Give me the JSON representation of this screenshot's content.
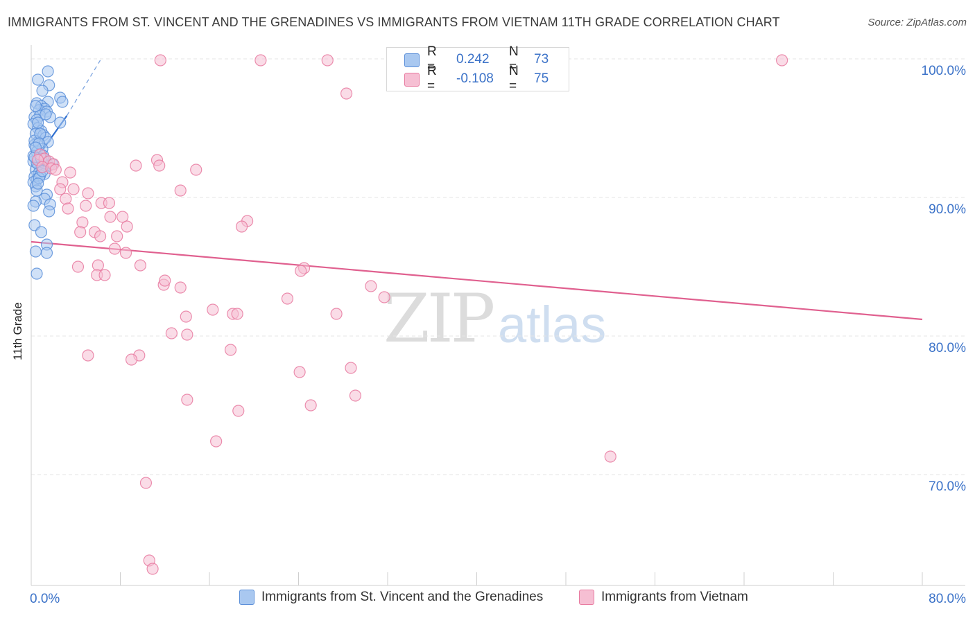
{
  "title": "IMMIGRANTS FROM ST. VINCENT AND THE GRENADINES VS IMMIGRANTS FROM VIETNAM 11TH GRADE CORRELATION CHART",
  "source": "Source: ZipAtlas.com",
  "watermark": {
    "zip": "ZIP",
    "atlas": "atlas"
  },
  "colors": {
    "blue": "#5b8fd9",
    "blue_fill": "#a9c8f0",
    "pink": "#e87aa0",
    "pink_fill": "#f6bfd3",
    "axis_label": "#3b72c8",
    "grid": "#e6e6e6"
  },
  "legend": {
    "rows": [
      {
        "r_label": "R =",
        "r_value": "0.242",
        "n_label": "N =",
        "n_value": "73"
      },
      {
        "r_label": "R =",
        "r_value": "-0.108",
        "n_label": "N =",
        "n_value": "75"
      }
    ]
  },
  "bottom_legend": [
    "Immigrants from St. Vincent and the Grenadines",
    "Immigrants from Vietnam"
  ],
  "chart_data": {
    "type": "scatter",
    "title": "IMMIGRANTS FROM ST. VINCENT AND THE GRENADINES VS IMMIGRANTS FROM VIETNAM 11TH GRADE CORRELATION CHART",
    "xlabel": "",
    "ylabel": "11th Grade",
    "xlim": [
      0,
      80
    ],
    "ylim": [
      62,
      101
    ],
    "x_tick_labels": [
      "0.0%",
      "80.0%"
    ],
    "y_ticks": [
      70,
      80,
      90,
      100
    ],
    "y_tick_labels": [
      "70.0%",
      "80.0%",
      "90.0%",
      "100.0%"
    ],
    "grid": true,
    "legend_position": "top-center",
    "series": [
      {
        "name": "Immigrants from St. Vincent and the Grenadines",
        "color": "#5b8fd9",
        "r": 0.242,
        "n": 73,
        "trend": {
          "x": [
            0.3,
            3.2
          ],
          "y": [
            92.6,
            95.9
          ]
        },
        "trend_extension": {
          "x": [
            3.2,
            6.2
          ],
          "y": [
            95.9,
            99.9
          ]
        },
        "points": [
          [
            1.5,
            99.1
          ],
          [
            0.6,
            98.5
          ],
          [
            1.6,
            98.1
          ],
          [
            1.0,
            97.7
          ],
          [
            2.6,
            97.2
          ],
          [
            1.5,
            96.9
          ],
          [
            2.8,
            96.9
          ],
          [
            0.5,
            96.8
          ],
          [
            0.9,
            96.6
          ],
          [
            1.2,
            96.4
          ],
          [
            0.7,
            96.3
          ],
          [
            1.4,
            96.2
          ],
          [
            0.3,
            95.8
          ],
          [
            0.8,
            95.9
          ],
          [
            1.7,
            95.8
          ],
          [
            0.5,
            95.6
          ],
          [
            0.2,
            95.3
          ],
          [
            2.6,
            95.4
          ],
          [
            0.6,
            95.0
          ],
          [
            0.9,
            94.8
          ],
          [
            0.4,
            94.6
          ],
          [
            1.1,
            94.5
          ],
          [
            1.3,
            94.3
          ],
          [
            0.6,
            94.0
          ],
          [
            1.5,
            94.0
          ],
          [
            0.3,
            93.8
          ],
          [
            0.5,
            93.3
          ],
          [
            0.8,
            92.9
          ],
          [
            1.1,
            92.7
          ],
          [
            0.2,
            92.6
          ],
          [
            0.6,
            92.4
          ],
          [
            0.9,
            92.2
          ],
          [
            0.4,
            92.0
          ],
          [
            0.7,
            91.8
          ],
          [
            1.2,
            91.7
          ],
          [
            0.3,
            91.5
          ],
          [
            0.5,
            91.3
          ],
          [
            0.8,
            91.6
          ],
          [
            0.2,
            91.1
          ],
          [
            0.4,
            90.8
          ],
          [
            1.4,
            90.2
          ],
          [
            1.2,
            89.9
          ],
          [
            0.4,
            89.7
          ],
          [
            1.7,
            89.5
          ],
          [
            0.2,
            89.4
          ],
          [
            1.6,
            89.0
          ],
          [
            0.3,
            88.0
          ],
          [
            0.9,
            87.5
          ],
          [
            1.4,
            86.6
          ],
          [
            0.4,
            86.1
          ],
          [
            1.4,
            86.0
          ],
          [
            0.5,
            84.5
          ],
          [
            0.9,
            93.1
          ],
          [
            1.3,
            92.7
          ],
          [
            0.7,
            91.4
          ],
          [
            0.5,
            92.5
          ],
          [
            1.0,
            93.5
          ],
          [
            0.3,
            94.1
          ],
          [
            0.6,
            95.4
          ],
          [
            1.3,
            96.0
          ],
          [
            0.4,
            96.6
          ],
          [
            0.8,
            94.6
          ],
          [
            1.6,
            92.3
          ],
          [
            0.5,
            90.5
          ],
          [
            1.1,
            93.0
          ],
          [
            0.7,
            93.9
          ],
          [
            0.2,
            93.0
          ],
          [
            1.9,
            92.4
          ],
          [
            1.0,
            91.9
          ],
          [
            0.3,
            92.9
          ],
          [
            0.6,
            91.0
          ],
          [
            0.9,
            92.8
          ],
          [
            0.4,
            93.6
          ]
        ]
      },
      {
        "name": "Immigrants from Vietnam",
        "color": "#e87aa0",
        "r": -0.108,
        "n": 75,
        "trend": {
          "x": [
            0.0,
            80.0
          ],
          "y": [
            86.8,
            81.2
          ]
        },
        "points": [
          [
            11.6,
            99.9
          ],
          [
            20.6,
            99.9
          ],
          [
            26.6,
            99.9
          ],
          [
            67.4,
            99.9
          ],
          [
            28.3,
            97.5
          ],
          [
            0.8,
            93.1
          ],
          [
            1.2,
            92.8
          ],
          [
            0.6,
            92.7
          ],
          [
            1.6,
            92.6
          ],
          [
            2.0,
            92.4
          ],
          [
            1.0,
            92.2
          ],
          [
            1.8,
            92.1
          ],
          [
            2.2,
            92.0
          ],
          [
            9.4,
            92.3
          ],
          [
            11.3,
            92.7
          ],
          [
            11.5,
            92.3
          ],
          [
            14.8,
            92.0
          ],
          [
            3.5,
            91.8
          ],
          [
            2.8,
            91.1
          ],
          [
            3.8,
            90.6
          ],
          [
            2.6,
            90.6
          ],
          [
            13.4,
            90.5
          ],
          [
            5.1,
            90.3
          ],
          [
            3.1,
            89.9
          ],
          [
            6.3,
            89.6
          ],
          [
            7.0,
            89.6
          ],
          [
            4.9,
            89.4
          ],
          [
            3.3,
            89.2
          ],
          [
            7.1,
            88.6
          ],
          [
            8.2,
            88.6
          ],
          [
            4.6,
            88.2
          ],
          [
            19.4,
            88.3
          ],
          [
            18.9,
            87.9
          ],
          [
            8.6,
            87.9
          ],
          [
            5.7,
            87.5
          ],
          [
            4.4,
            87.5
          ],
          [
            6.2,
            87.2
          ],
          [
            7.7,
            87.2
          ],
          [
            7.5,
            86.3
          ],
          [
            8.5,
            86.0
          ],
          [
            6.0,
            85.1
          ],
          [
            9.8,
            85.1
          ],
          [
            4.2,
            85.0
          ],
          [
            24.5,
            84.9
          ],
          [
            5.9,
            84.4
          ],
          [
            6.6,
            84.4
          ],
          [
            11.9,
            83.7
          ],
          [
            13.4,
            83.5
          ],
          [
            30.5,
            83.6
          ],
          [
            23.0,
            82.7
          ],
          [
            31.7,
            82.8
          ],
          [
            16.3,
            81.9
          ],
          [
            18.1,
            81.6
          ],
          [
            18.5,
            81.6
          ],
          [
            27.4,
            81.6
          ],
          [
            13.9,
            81.4
          ],
          [
            12.6,
            80.2
          ],
          [
            14.0,
            80.1
          ],
          [
            17.9,
            79.0
          ],
          [
            5.1,
            78.6
          ],
          [
            9.7,
            78.6
          ],
          [
            9.0,
            78.3
          ],
          [
            24.1,
            77.4
          ],
          [
            28.7,
            77.7
          ],
          [
            29.1,
            75.7
          ],
          [
            14.0,
            75.4
          ],
          [
            25.1,
            75.0
          ],
          [
            18.6,
            74.6
          ],
          [
            16.6,
            72.4
          ],
          [
            52.0,
            71.3
          ],
          [
            10.3,
            69.4
          ],
          [
            10.6,
            63.8
          ],
          [
            10.9,
            63.2
          ],
          [
            24.2,
            84.7
          ],
          [
            12.0,
            84.0
          ]
        ]
      }
    ]
  }
}
